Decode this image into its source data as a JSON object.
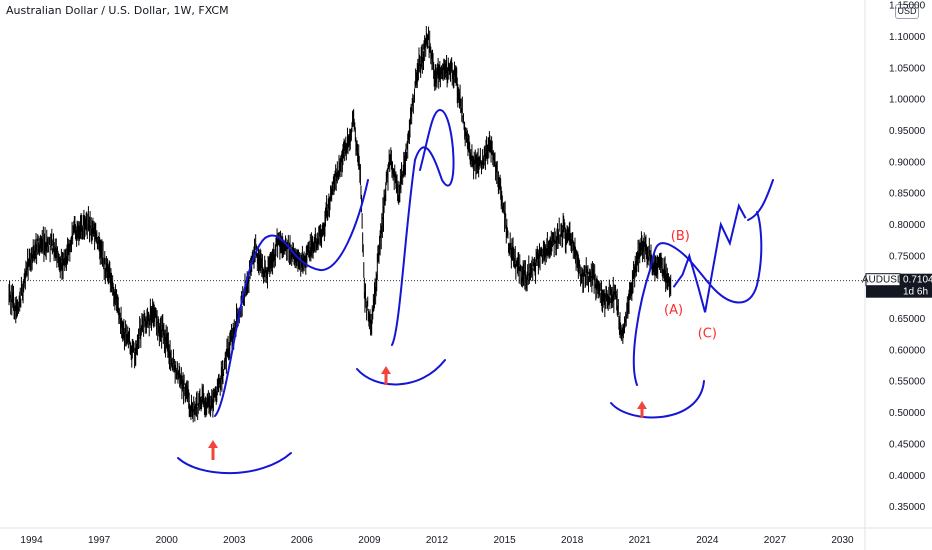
{
  "header": {
    "title": "Australian Dollar / U.S. Dollar, 1W, FXCM"
  },
  "currency_badge": "USD",
  "price_tag": {
    "symbol": "AUDUSD",
    "price": "0.71040",
    "countdown": "1d 6h",
    "bg_color": "#131722"
  },
  "colors": {
    "price_series": "#000000",
    "annotation": "#1515d6",
    "wave_label": "#ff2b2b",
    "arrow": "#f2433c"
  },
  "chart_data": {
    "type": "line",
    "title": "Australian Dollar / U.S. Dollar, 1W, FXCM",
    "xlabel": "",
    "ylabel": "",
    "x_ticks": [
      "1994",
      "1997",
      "2000",
      "2003",
      "2006",
      "2009",
      "2012",
      "2015",
      "2018",
      "2021",
      "2024",
      "2027",
      "2030"
    ],
    "y_ticks": [
      "0.35000",
      "0.40000",
      "0.45000",
      "0.50000",
      "0.55000",
      "0.60000",
      "0.65000",
      "0.70000",
      "0.75000",
      "0.80000",
      "0.85000",
      "0.90000",
      "0.95000",
      "1.00000",
      "1.05000",
      "1.10000",
      "1.15000"
    ],
    "xlim": [
      1992.6,
      2031.0
    ],
    "ylim": [
      0.335,
      1.155
    ],
    "last_price": 0.7104,
    "series": [
      {
        "type": "price",
        "x": [
          1993.0,
          1993.4,
          1993.8,
          1994.3,
          1994.9,
          1995.4,
          1995.9,
          1996.5,
          1996.9,
          1997.2,
          1997.6,
          1998.1,
          1998.6,
          1998.9,
          1999.4,
          1999.9,
          2000.3,
          2000.8,
          2001.2,
          2001.5,
          2001.9,
          2002.4,
          2002.9,
          2003.4,
          2003.9,
          2004.4,
          2004.9,
          2005.4,
          2005.9,
          2006.4,
          2006.9,
          2007.4,
          2007.9,
          2008.3,
          2008.6,
          2008.8,
          2009.1,
          2009.5,
          2009.9,
          2010.3,
          2010.6,
          2010.9,
          2011.2,
          2011.6,
          2011.9,
          2012.3,
          2012.8,
          2013.2,
          2013.5,
          2013.9,
          2014.4,
          2014.8,
          2015.2,
          2015.7,
          2016.1,
          2016.6,
          2017.1,
          2017.6,
          2018.0,
          2018.4,
          2018.9,
          2019.4,
          2019.9,
          2020.2,
          2020.5,
          2020.9,
          2021.2,
          2021.6,
          2021.9,
          2022.2,
          2022.4
        ],
        "y": [
          0.69,
          0.66,
          0.73,
          0.77,
          0.77,
          0.73,
          0.79,
          0.8,
          0.78,
          0.74,
          0.7,
          0.63,
          0.59,
          0.64,
          0.66,
          0.62,
          0.58,
          0.54,
          0.5,
          0.52,
          0.51,
          0.55,
          0.62,
          0.68,
          0.76,
          0.72,
          0.77,
          0.76,
          0.74,
          0.76,
          0.79,
          0.86,
          0.92,
          0.96,
          0.88,
          0.68,
          0.64,
          0.78,
          0.91,
          0.85,
          0.9,
          0.99,
          1.05,
          1.1,
          1.04,
          1.05,
          1.04,
          0.96,
          0.9,
          0.9,
          0.93,
          0.86,
          0.77,
          0.72,
          0.72,
          0.75,
          0.77,
          0.79,
          0.77,
          0.72,
          0.72,
          0.68,
          0.69,
          0.62,
          0.68,
          0.75,
          0.77,
          0.73,
          0.74,
          0.71,
          0.71
        ]
      },
      {
        "type": "projection",
        "x": [
          2022.5,
          2022.9,
          2023.2,
          2023.6,
          2023.9,
          2024.2,
          2024.6,
          2025.0,
          2025.4,
          2025.7
        ],
        "y": [
          0.7,
          0.72,
          0.75,
          0.7,
          0.66,
          0.72,
          0.8,
          0.77,
          0.83,
          0.81
        ]
      }
    ],
    "annotations": [
      {
        "text": "(A)",
        "x": 2022.5,
        "y": 0.665
      },
      {
        "text": "(B)",
        "x": 2022.8,
        "y": 0.783
      },
      {
        "text": "(C)",
        "x": 2024.0,
        "y": 0.628
      }
    ]
  }
}
